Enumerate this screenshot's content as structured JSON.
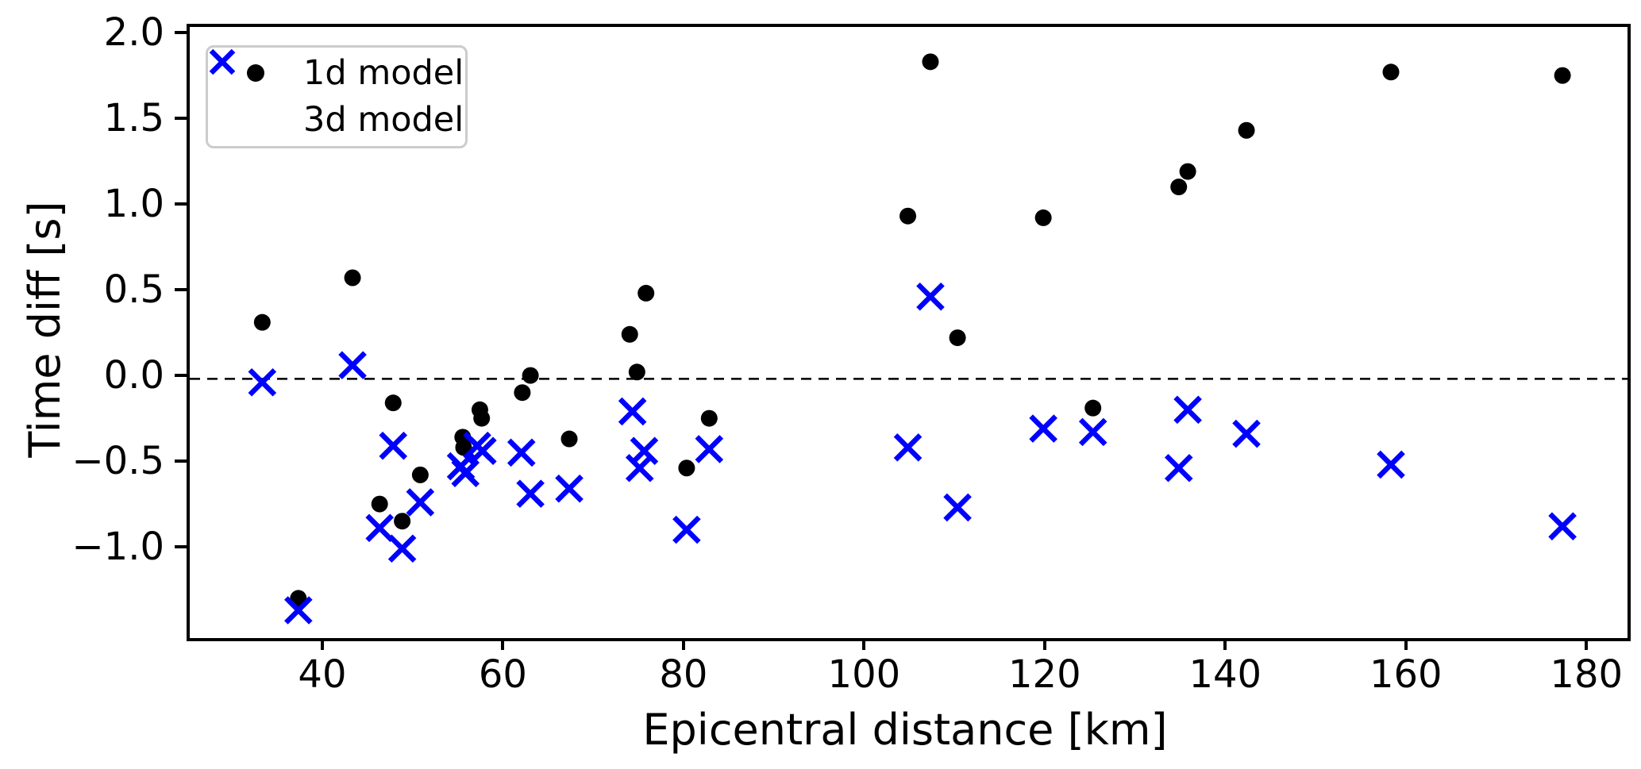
{
  "figure": {
    "background_color": "#ffffff",
    "axis_color": "#000000",
    "zero_line_color": "#000000"
  },
  "legend": {
    "items": [
      {
        "label": "1d model",
        "marker": "circle",
        "color": "#000000"
      },
      {
        "label": "3d model",
        "marker": "x",
        "color": "#0000ff"
      }
    ]
  },
  "axes": {
    "x_label": "Epicentral distance [km]",
    "y_label": "Time diff [s]",
    "x_ticks": [
      {
        "v": 40,
        "label": "40"
      },
      {
        "v": 60,
        "label": "60"
      },
      {
        "v": 80,
        "label": "80"
      },
      {
        "v": 100,
        "label": "100"
      },
      {
        "v": 120,
        "label": "120"
      },
      {
        "v": 140,
        "label": "140"
      },
      {
        "v": 160,
        "label": "160"
      },
      {
        "v": 180,
        "label": "180"
      }
    ],
    "y_ticks": [
      {
        "v": 2.0,
        "label": "2.0"
      },
      {
        "v": 1.5,
        "label": "1.5"
      },
      {
        "v": 1.0,
        "label": "1.0"
      },
      {
        "v": 0.5,
        "label": "0.5"
      },
      {
        "v": 0.0,
        "label": "0.0"
      },
      {
        "v": -0.5,
        "label": "−0.5"
      },
      {
        "v": -1.0,
        "label": "−1.0"
      }
    ]
  },
  "chart_data": {
    "type": "scatter",
    "title": "",
    "xlabel": "Epicentral distance [km]",
    "ylabel": "Time diff [s]",
    "xlim": [
      24.97,
      184.2
    ],
    "ylim": [
      -1.512,
      2.053
    ],
    "grid": false,
    "zero_reference_line": {
      "y": 0.0,
      "style": "dashed"
    },
    "legend_position": "upper left",
    "series": [
      {
        "name": "1d model",
        "marker": "circle",
        "color": "#000000",
        "points": [
          [
            33,
            0.33
          ],
          [
            37,
            -1.28
          ],
          [
            43,
            0.59
          ],
          [
            46,
            -0.73
          ],
          [
            47.5,
            -0.14
          ],
          [
            48.5,
            -0.83
          ],
          [
            50.5,
            -0.56
          ],
          [
            55.2,
            -0.34
          ],
          [
            55.3,
            -0.4
          ],
          [
            57.1,
            -0.18
          ],
          [
            57.3,
            -0.23
          ],
          [
            61.8,
            -0.08
          ],
          [
            62.7,
            0.02
          ],
          [
            67,
            -0.35
          ],
          [
            73.7,
            0.26
          ],
          [
            74.5,
            0.04
          ],
          [
            75.5,
            0.5
          ],
          [
            80,
            -0.52
          ],
          [
            82.5,
            -0.23
          ],
          [
            104.5,
            0.95
          ],
          [
            107,
            1.85
          ],
          [
            110,
            0.24
          ],
          [
            119.5,
            0.94
          ],
          [
            125,
            -0.17
          ],
          [
            134.5,
            1.12
          ],
          [
            135.5,
            1.21
          ],
          [
            142,
            1.45
          ],
          [
            158,
            1.79
          ],
          [
            177,
            1.77
          ]
        ]
      },
      {
        "name": "3d model",
        "marker": "x",
        "color": "#0000ff",
        "points": [
          [
            33,
            -0.02
          ],
          [
            37,
            -1.35
          ],
          [
            43,
            0.08
          ],
          [
            46,
            -0.87
          ],
          [
            47.5,
            -0.39
          ],
          [
            48.5,
            -0.99
          ],
          [
            50.5,
            -0.72
          ],
          [
            55.0,
            -0.51
          ],
          [
            55.5,
            -0.55
          ],
          [
            56.8,
            -0.39
          ],
          [
            57.4,
            -0.42
          ],
          [
            61.7,
            -0.43
          ],
          [
            62.7,
            -0.67
          ],
          [
            67,
            -0.64
          ],
          [
            74,
            -0.19
          ],
          [
            74.8,
            -0.52
          ],
          [
            75.3,
            -0.42
          ],
          [
            80,
            -0.88
          ],
          [
            82.5,
            -0.41
          ],
          [
            104.5,
            -0.4
          ],
          [
            107,
            0.48
          ],
          [
            110,
            -0.75
          ],
          [
            119.5,
            -0.29
          ],
          [
            125,
            -0.31
          ],
          [
            134.5,
            -0.52
          ],
          [
            135.5,
            -0.18
          ],
          [
            142,
            -0.32
          ],
          [
            158,
            -0.5
          ],
          [
            177,
            -0.86
          ]
        ]
      }
    ]
  }
}
